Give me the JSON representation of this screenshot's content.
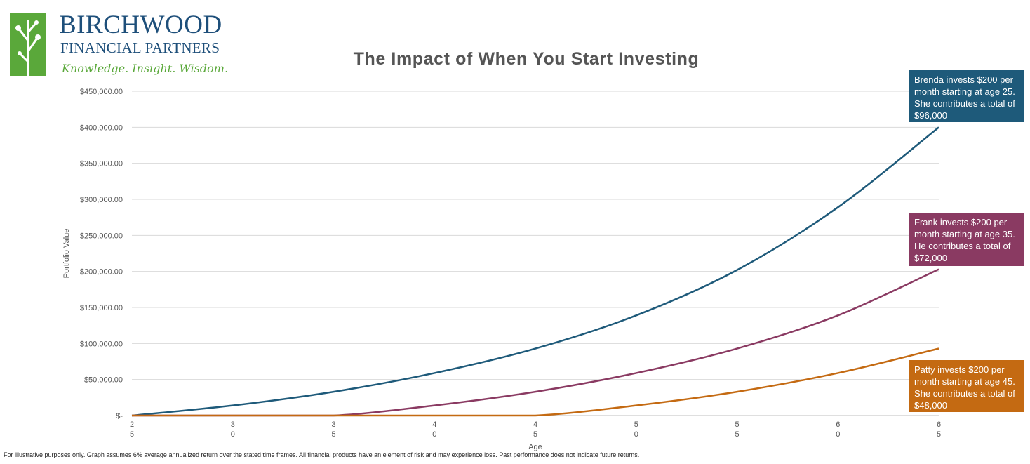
{
  "logo": {
    "name": "BIRCHWOOD",
    "subtitle": "FINANCIAL PARTNERS",
    "tagline": "Knowledge. Insight. Wisdom."
  },
  "footnote": "For illustrative purposes only. Graph assumes 6% average annualized return over the stated time frames. All financial products have an element of risk and may experience loss. Past performance does not indicate future returns.",
  "callouts": {
    "brenda": "Brenda invests $200 per month starting at age 25. She contributes a total of $96,000",
    "frank": "Frank invests $200 per month starting at age 35. He contributes a total of $72,000",
    "patty": "Patty invests $200 per month starting at age 45. She contributes a total of $48,000"
  },
  "colors": {
    "brenda": "#1e5a7a",
    "frank": "#8a3a62",
    "patty": "#c46a12",
    "grid": "#d9d9d9",
    "axis": "#555555"
  },
  "chart_data": {
    "type": "line",
    "title": "The Impact of When You Start Investing",
    "xlabel": "Age",
    "ylabel": "Portfolio Value",
    "xlim": [
      25,
      65
    ],
    "ylim": [
      0,
      450000
    ],
    "x_ticks": [
      {
        "value": 25,
        "label": "2\n5"
      },
      {
        "value": 30,
        "label": "3\n0"
      },
      {
        "value": 35,
        "label": "3\n5"
      },
      {
        "value": 40,
        "label": "4\n0"
      },
      {
        "value": 45,
        "label": "4\n5"
      },
      {
        "value": 50,
        "label": "5\n0"
      },
      {
        "value": 55,
        "label": "5\n5"
      },
      {
        "value": 60,
        "label": "6\n0"
      },
      {
        "value": 65,
        "label": "6\n5"
      }
    ],
    "y_ticks": [
      {
        "value": 0,
        "label": "$-"
      },
      {
        "value": 50000,
        "label": "$50,000.00"
      },
      {
        "value": 100000,
        "label": "$100,000.00"
      },
      {
        "value": 150000,
        "label": "$150,000.00"
      },
      {
        "value": 200000,
        "label": "$200,000.00"
      },
      {
        "value": 250000,
        "label": "$250,000.00"
      },
      {
        "value": 300000,
        "label": "$300,000.00"
      },
      {
        "value": 350000,
        "label": "$350,000.00"
      },
      {
        "value": 400000,
        "label": "$400,000.00"
      },
      {
        "value": 450000,
        "label": "$450,000.00"
      }
    ],
    "grid": true,
    "series": [
      {
        "key": "brenda",
        "color": "#1e5a7a",
        "x": [
          25,
          30,
          35,
          40,
          45,
          50,
          55,
          60,
          65
        ],
        "values": [
          0,
          14000,
          33000,
          59000,
          93000,
          139000,
          202000,
          289000,
          400000
        ]
      },
      {
        "key": "frank",
        "color": "#8a3a62",
        "x": [
          25,
          30,
          35,
          40,
          45,
          50,
          55,
          60,
          65
        ],
        "values": [
          0,
          0,
          0,
          14000,
          33000,
          59000,
          93000,
          139000,
          203000
        ]
      },
      {
        "key": "patty",
        "color": "#c46a12",
        "x": [
          25,
          30,
          35,
          40,
          45,
          50,
          55,
          60,
          65
        ],
        "values": [
          0,
          0,
          0,
          0,
          0,
          14000,
          33000,
          59000,
          93000
        ]
      }
    ]
  }
}
